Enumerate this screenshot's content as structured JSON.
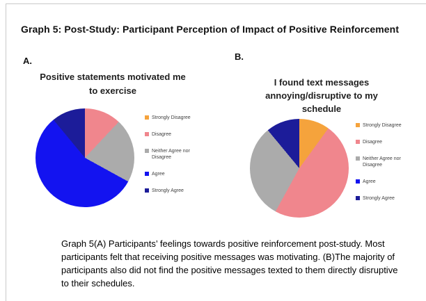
{
  "page": {
    "title": "Graph 5: Post-Study: Participant Perception of Impact of Positive Reinforcement",
    "caption": "Graph 5(A) Participants’ feelings towards positive reinforcement post-study. Most participants felt that receiving positive messages was motivating. (B)The majority of participants also did not find the positive messages texted to them directly disruptive to their schedules."
  },
  "chart_data": [
    {
      "type": "pie",
      "panel_label": "A.",
      "title": "Positive statements motivated me to exercise",
      "categories": [
        "Strongly Disagree",
        "Disagree",
        "Neither Agree nor Disagree",
        "Agree",
        "Strongly Agree"
      ],
      "values_pct": [
        0,
        12,
        21,
        56,
        11
      ],
      "colors": [
        "#F5A33C",
        "#F0868D",
        "#ABABAB",
        "#1313F0",
        "#1C1C99"
      ],
      "start_angle_deg": 0,
      "direction": "clockwise",
      "legend_position": "right",
      "note": "percentages estimated from slice angles; Strongly Disagree slice absent (0%)"
    },
    {
      "type": "pie",
      "panel_label": "B.",
      "title": "I found text messages annoying/disruptive to my schedule",
      "categories": [
        "Strongly Disagree",
        "Disagree",
        "Neither Agree nor Disagree",
        "Agree",
        "Strongly Agree"
      ],
      "values_pct": [
        10,
        48,
        31,
        0,
        11
      ],
      "colors": [
        "#F5A33C",
        "#F0868D",
        "#ABABAB",
        "#1313F0",
        "#1C1C99"
      ],
      "start_angle_deg": 0,
      "direction": "clockwise",
      "legend_position": "right",
      "note": "percentages estimated from slice angles; Agree slice absent (0%)"
    }
  ]
}
